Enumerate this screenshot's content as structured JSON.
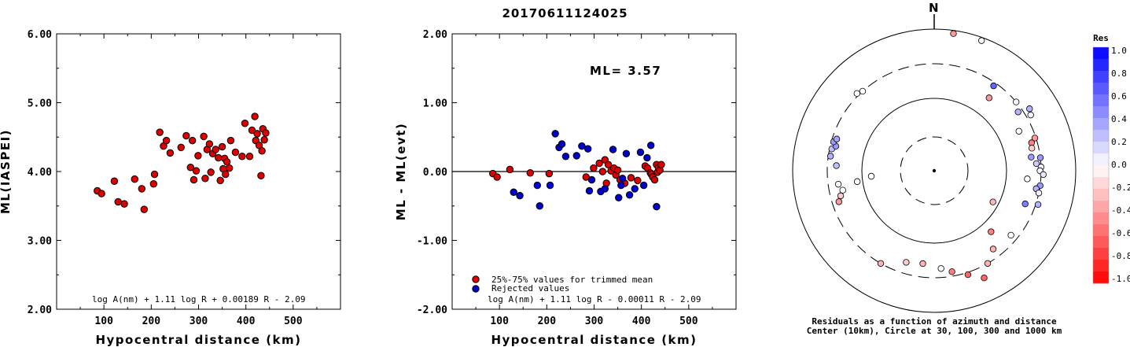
{
  "title": "20170611124025",
  "colors": {
    "trimmed": "#dd0000",
    "rejected": "#0000cc",
    "outline": "#000000"
  },
  "chart_data": [
    {
      "type": "scatter",
      "xlabel": "Hypocentral distance (km)",
      "ylabel": "ML(IASPEI)",
      "xlim": [
        0,
        600
      ],
      "ylim": [
        2.0,
        6.0
      ],
      "xticks": [
        "100",
        "200",
        "300",
        "400",
        "500"
      ],
      "yticks": [
        "2.00",
        "3.00",
        "4.00",
        "5.00",
        "6.00"
      ],
      "formula": "log A(nm) + 1.11 log R + 0.00189 R - 2.09",
      "points": [
        [
          86,
          3.72
        ],
        [
          95,
          3.68
        ],
        [
          122,
          3.86
        ],
        [
          130,
          3.56
        ],
        [
          143,
          3.53
        ],
        [
          165,
          3.89
        ],
        [
          180,
          3.75
        ],
        [
          185,
          3.45
        ],
        [
          205,
          3.82
        ],
        [
          207,
          3.96
        ],
        [
          218,
          4.57
        ],
        [
          226,
          4.37
        ],
        [
          232,
          4.45
        ],
        [
          240,
          4.27
        ],
        [
          263,
          4.35
        ],
        [
          274,
          4.52
        ],
        [
          283,
          4.06
        ],
        [
          287,
          4.45
        ],
        [
          290,
          3.88
        ],
        [
          295,
          4.01
        ],
        [
          299,
          4.23
        ],
        [
          311,
          4.51
        ],
        [
          314,
          3.9
        ],
        [
          318,
          4.32
        ],
        [
          323,
          4.4
        ],
        [
          326,
          3.99
        ],
        [
          330,
          4.26
        ],
        [
          336,
          4.32
        ],
        [
          342,
          4.2
        ],
        [
          346,
          3.87
        ],
        [
          350,
          4.36
        ],
        [
          352,
          4.04
        ],
        [
          355,
          4.19
        ],
        [
          357,
          3.96
        ],
        [
          360,
          4.14
        ],
        [
          365,
          4.05
        ],
        [
          368,
          4.45
        ],
        [
          378,
          4.28
        ],
        [
          392,
          4.22
        ],
        [
          398,
          4.7
        ],
        [
          408,
          4.22
        ],
        [
          413,
          4.6
        ],
        [
          419,
          4.8
        ],
        [
          421,
          4.45
        ],
        [
          424,
          4.55
        ],
        [
          428,
          4.38
        ],
        [
          432,
          3.94
        ],
        [
          434,
          4.3
        ],
        [
          436,
          4.62
        ],
        [
          439,
          4.46
        ],
        [
          442,
          4.56
        ]
      ]
    },
    {
      "type": "scatter",
      "xlabel": "Hypocentral distance (km)",
      "ylabel": "ML - ML(evt)",
      "xlim": [
        0,
        600
      ],
      "ylim": [
        -2.0,
        2.0
      ],
      "xticks": [
        "100",
        "200",
        "300",
        "400",
        "500"
      ],
      "yticks": [
        "-2.00",
        "-1.00",
        "0.00",
        "1.00",
        "2.00"
      ],
      "annotation": "ML= 3.57",
      "reference_line": 0,
      "legend": [
        "25%-75% values for trimmed mean",
        "Rejected values"
      ],
      "formula": "log A(nm) + 1.11 log R - 0.00011 R - 2.09",
      "series": [
        {
          "name": "25%-75% values for trimmed mean",
          "points": [
            [
              86,
              -0.03
            ],
            [
              95,
              -0.08
            ],
            [
              122,
              0.03
            ],
            [
              165,
              -0.02
            ],
            [
              205,
              -0.03
            ],
            [
              283,
              -0.08
            ],
            [
              299,
              0.05
            ],
            [
              311,
              0.12
            ],
            [
              318,
              0.0
            ],
            [
              323,
              0.17
            ],
            [
              326,
              -0.17
            ],
            [
              330,
              0.1
            ],
            [
              336,
              0.01
            ],
            [
              342,
              0.05
            ],
            [
              346,
              -0.05
            ],
            [
              350,
              0.02
            ],
            [
              355,
              -0.12
            ],
            [
              365,
              -0.17
            ],
            [
              378,
              -0.09
            ],
            [
              392,
              -0.13
            ],
            [
              408,
              0.08
            ],
            [
              413,
              0.05
            ],
            [
              419,
              -0.02
            ],
            [
              421,
              -0.04
            ],
            [
              424,
              -0.08
            ],
            [
              428,
              -0.12
            ],
            [
              432,
              0.1
            ],
            [
              434,
              -0.01
            ],
            [
              436,
              0.06
            ],
            [
              439,
              0.02
            ],
            [
              442,
              0.1
            ]
          ]
        },
        {
          "name": "Rejected values",
          "points": [
            [
              130,
              -0.3
            ],
            [
              143,
              -0.35
            ],
            [
              180,
              -0.2
            ],
            [
              185,
              -0.5
            ],
            [
              207,
              -0.2
            ],
            [
              218,
              0.55
            ],
            [
              226,
              0.35
            ],
            [
              232,
              0.4
            ],
            [
              240,
              0.22
            ],
            [
              263,
              0.23
            ],
            [
              274,
              0.37
            ],
            [
              287,
              0.33
            ],
            [
              290,
              -0.28
            ],
            [
              295,
              -0.12
            ],
            [
              314,
              -0.29
            ],
            [
              323,
              -0.25
            ],
            [
              340,
              0.32
            ],
            [
              352,
              -0.38
            ],
            [
              357,
              -0.2
            ],
            [
              360,
              -0.1
            ],
            [
              368,
              0.26
            ],
            [
              375,
              -0.34
            ],
            [
              386,
              -0.25
            ],
            [
              398,
              0.28
            ],
            [
              405,
              -0.2
            ],
            [
              412,
              0.2
            ],
            [
              420,
              0.38
            ],
            [
              432,
              -0.51
            ]
          ]
        }
      ]
    },
    {
      "type": "scatter",
      "subtype": "polar residual plot",
      "north_label": "N",
      "caption_line1": "Residuals as a function of azimuth and distance",
      "caption_line2": "Center (10km), Circle at 30, 100, 300 and 1000 km",
      "colorbar_title": "Res",
      "colorbar_ticks": [
        "1.0",
        "0.8",
        "0.6",
        "0.4",
        "0.2",
        "0.0",
        "-0.2",
        "-0.4",
        "-0.6",
        "-0.8",
        "-1.0"
      ],
      "rings_km": [
        30,
        100,
        300,
        1000
      ],
      "stations": [
        {
          "az": 8,
          "dist": 560,
          "res": -0.4
        },
        {
          "az": 20,
          "dist": 560,
          "res": 0.03
        },
        {
          "az": 35,
          "dist": 405,
          "res": 0.6
        },
        {
          "az": 37,
          "dist": 350,
          "res": -0.4
        },
        {
          "az": 50,
          "dist": 420,
          "res": 0.03
        },
        {
          "az": 55,
          "dist": 400,
          "res": 0.3
        },
        {
          "az": 57,
          "dist": 450,
          "res": 0.3
        },
        {
          "az": 60,
          "dist": 440,
          "res": 0.05
        },
        {
          "az": 65,
          "dist": 360,
          "res": 0.0
        },
        {
          "az": 72,
          "dist": 415,
          "res": -0.4
        },
        {
          "az": 74,
          "dist": 395,
          "res": -0.5
        },
        {
          "az": 77,
          "dist": 390,
          "res": -0.2
        },
        {
          "az": 82,
          "dist": 380,
          "res": 0.4
        },
        {
          "az": 83,
          "dist": 420,
          "res": 0.4
        },
        {
          "az": 86,
          "dist": 400,
          "res": 0.2
        },
        {
          "az": 88,
          "dist": 420,
          "res": 0.03
        },
        {
          "az": 90,
          "dist": 415,
          "res": 0.03
        },
        {
          "az": 92,
          "dist": 430,
          "res": 0.1
        },
        {
          "az": 95,
          "dist": 360,
          "res": 0.0
        },
        {
          "az": 98,
          "dist": 420,
          "res": 0.4
        },
        {
          "az": 100,
          "dist": 405,
          "res": 0.3
        },
        {
          "az": 102,
          "dist": 420,
          "res": 0.05
        },
        {
          "az": 108,
          "dist": 430,
          "res": 0.3
        },
        {
          "az": 110,
          "dist": 375,
          "res": 0.5
        },
        {
          "az": 118,
          "dist": 240,
          "res": -0.3
        },
        {
          "az": 130,
          "dist": 390,
          "res": 0.0
        },
        {
          "az": 137,
          "dist": 315,
          "res": -0.5
        },
        {
          "az": 143,
          "dist": 380,
          "res": -0.3
        },
        {
          "az": 150,
          "dist": 420,
          "res": -0.3
        },
        {
          "az": 155,
          "dist": 470,
          "res": -0.6
        },
        {
          "az": 162,
          "dist": 430,
          "res": -0.6
        },
        {
          "az": 170,
          "dist": 400,
          "res": -0.5
        },
        {
          "az": 176,
          "dist": 380,
          "res": 0.0
        },
        {
          "az": 187,
          "dist": 360,
          "res": -0.3
        },
        {
          "az": 197,
          "dist": 370,
          "res": -0.2
        },
        {
          "az": 210,
          "dist": 420,
          "res": -0.3
        },
        {
          "az": 252,
          "dist": 390,
          "res": -0.4
        },
        {
          "az": 255,
          "dist": 375,
          "res": -0.2
        },
        {
          "az": 258,
          "dist": 360,
          "res": 0.0
        },
        {
          "az": 262,
          "dist": 375,
          "res": 0.0
        },
        {
          "az": 262,
          "dist": 290,
          "res": 0.0
        },
        {
          "az": 265,
          "dist": 225,
          "res": 0.0
        },
        {
          "az": 273,
          "dist": 380,
          "res": 0.25
        },
        {
          "az": 278,
          "dist": 410,
          "res": 0.3
        },
        {
          "az": 282,
          "dist": 410,
          "res": 0.25
        },
        {
          "az": 284,
          "dist": 395,
          "res": 0.4
        },
        {
          "az": 286,
          "dist": 410,
          "res": 0.4
        },
        {
          "az": 288,
          "dist": 400,
          "res": 0.35
        },
        {
          "az": 315,
          "dist": 430,
          "res": 0.0
        },
        {
          "az": 318,
          "dist": 420,
          "res": 0.0
        }
      ]
    }
  ]
}
